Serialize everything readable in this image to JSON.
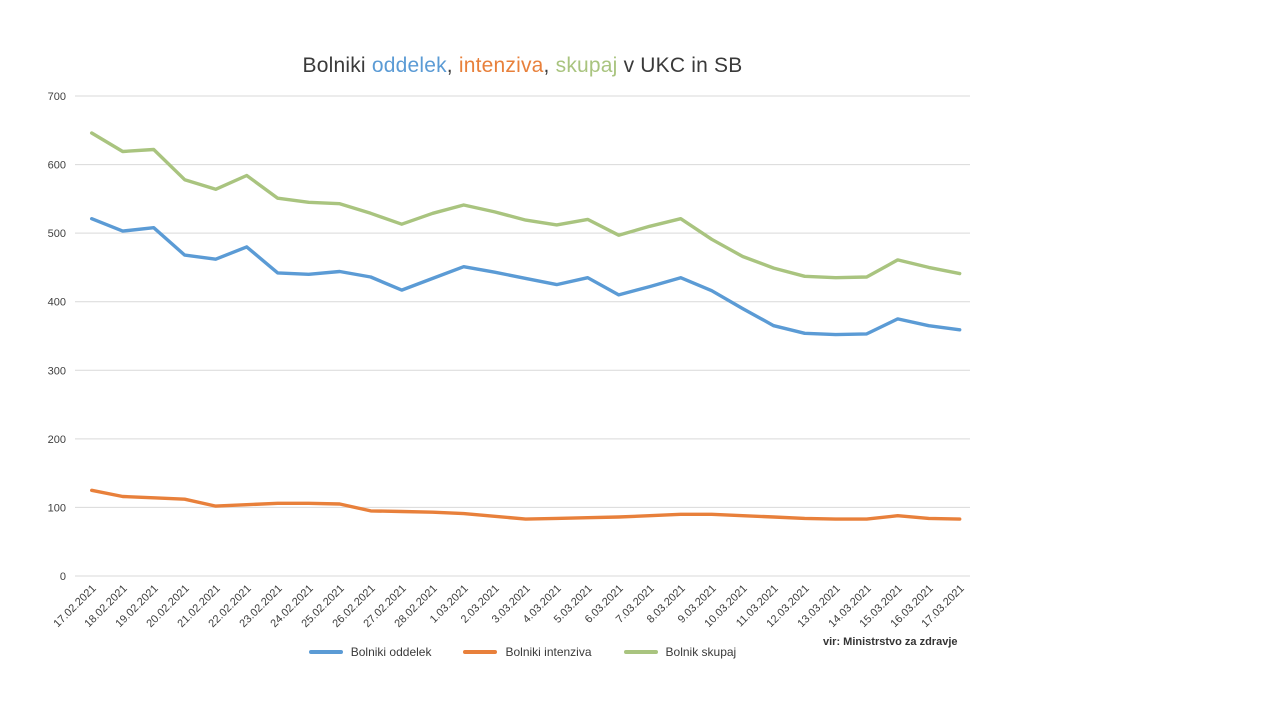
{
  "title": {
    "part1": "Bolniki ",
    "word1": "oddelek",
    "comma1": ", ",
    "word2": "intenziva",
    "comma2": ", ",
    "word3": "skupaj",
    "part2": " v UKC in SB"
  },
  "source_note": "vir: Ministrstvo za zdravje",
  "colors": {
    "grid": "#d9d9d9",
    "axis_text": "#404040",
    "title_text": "#3a3a3a"
  },
  "chart_data": {
    "type": "line",
    "title": "Bolniki oddelek, intenziva, skupaj v UKC in SB",
    "categories": [
      "17.02.2021",
      "18.02.2021",
      "19.02.2021",
      "20.02.2021",
      "21.02.2021",
      "22.02.2021",
      "23.02.2021",
      "24.02.2021",
      "25.02.2021",
      "26.02.2021",
      "27.02.2021",
      "28.02.2021",
      "1.03.2021",
      "2.03.2021",
      "3.03.2021",
      "4.03.2021",
      "5.03.2021",
      "6.03.2021",
      "7.03.2021",
      "8.03.2021",
      "9.03.2021",
      "10.03.2021",
      "11.03.2021",
      "12.03.2021",
      "13.03.2021",
      "14.03.2021",
      "15.03.2021",
      "16.03.2021",
      "17.03.2021"
    ],
    "series": [
      {
        "name": "Bolniki oddelek",
        "color": "#5b9bd5",
        "values": [
          521,
          503,
          508,
          468,
          462,
          480,
          442,
          440,
          444,
          436,
          417,
          434,
          451,
          443,
          434,
          425,
          435,
          410,
          422,
          435,
          416,
          390,
          365,
          354,
          352,
          353,
          375,
          365,
          359
        ]
      },
      {
        "name": "Bolniki intenziva",
        "color": "#e8803b",
        "values": [
          125,
          116,
          114,
          112,
          102,
          104,
          106,
          106,
          105,
          95,
          94,
          93,
          91,
          87,
          83,
          84,
          85,
          86,
          88,
          90,
          90,
          88,
          86,
          84,
          83,
          83,
          88,
          84,
          83
        ]
      },
      {
        "name": "Bolnik skupaj",
        "color": "#a9c47f",
        "values": [
          646,
          619,
          622,
          578,
          564,
          584,
          551,
          545,
          543,
          529,
          513,
          529,
          541,
          531,
          519,
          512,
          520,
          497,
          510,
          521,
          491,
          466,
          449,
          437,
          435,
          436,
          461,
          450,
          441
        ]
      }
    ],
    "xlabel": "",
    "ylabel": "",
    "ylim": [
      0,
      700
    ],
    "yticks": [
      0,
      100,
      200,
      300,
      400,
      500,
      600,
      700
    ],
    "grid": true,
    "legend_position": "bottom",
    "source": "vir: Ministrstvo za zdravje"
  }
}
